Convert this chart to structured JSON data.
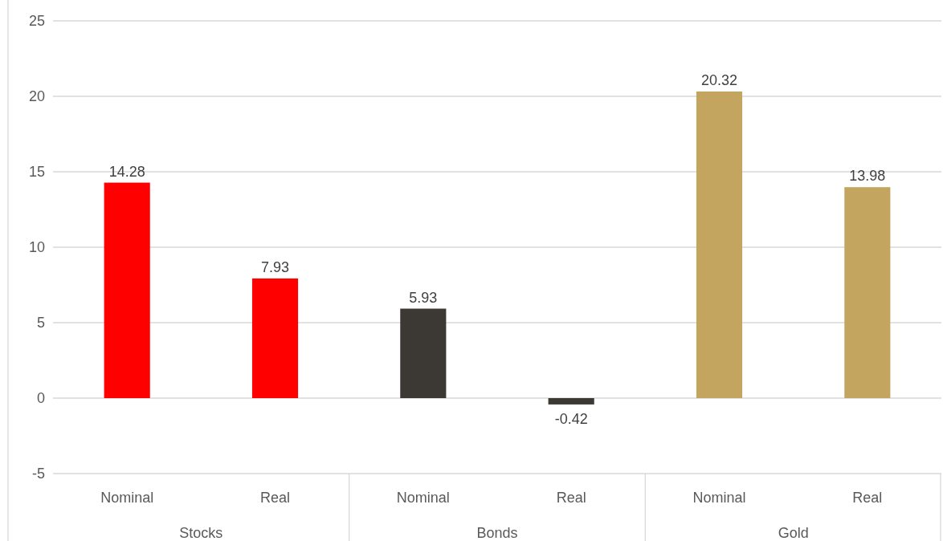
{
  "chart_data": {
    "type": "bar",
    "categories": [
      "Nominal",
      "Real",
      "Nominal",
      "Real",
      "Nominal",
      "Real"
    ],
    "values": [
      14.28,
      7.93,
      5.93,
      -0.42,
      20.32,
      13.98
    ],
    "colors": [
      "#ff0000",
      "#ff0000",
      "#3c3934",
      "#3c3934",
      "#c4a55f",
      "#c4a55f"
    ],
    "ylim": [
      -5,
      25
    ],
    "yticks": [
      -5,
      0,
      5,
      10,
      15,
      20,
      25
    ],
    "grid": "y",
    "data_labels": true,
    "annotations": [
      "Stocks",
      "Bonds",
      "Gold"
    ]
  }
}
